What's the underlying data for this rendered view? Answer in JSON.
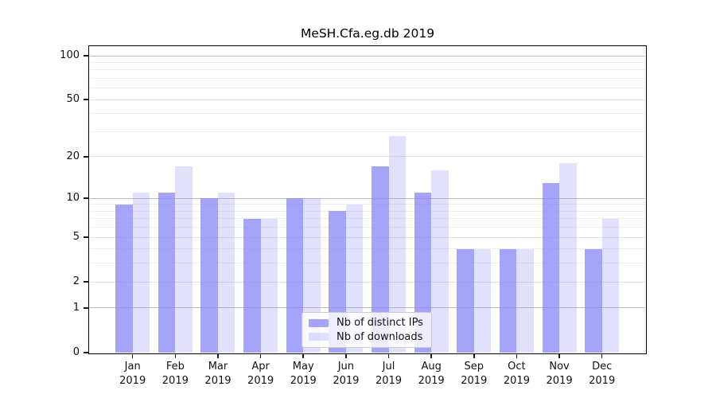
{
  "title": "MeSH.Cfa.eg.db 2019",
  "chart_data": {
    "type": "bar",
    "title": "MeSH.Cfa.eg.db 2019",
    "categories": [
      "Jan",
      "Feb",
      "Mar",
      "Apr",
      "May",
      "Jun",
      "Jul",
      "Aug",
      "Sep",
      "Oct",
      "Nov",
      "Dec"
    ],
    "category_year": "2019",
    "series": [
      {
        "name": "Nb of distinct IPs",
        "color": "#8b8bf6",
        "alpha": 0.78,
        "values": [
          9,
          11,
          10,
          7,
          10,
          8,
          17,
          11,
          4,
          4,
          13,
          4
        ]
      },
      {
        "name": "Nb of downloads",
        "color": "#8b8bf6",
        "alpha": 0.26,
        "values": [
          11,
          17,
          11,
          7,
          10,
          9,
          28,
          16,
          4,
          4,
          18,
          7
        ]
      }
    ],
    "xlabel": "",
    "ylabel": "",
    "yscale": "log1p",
    "ylim": [
      0,
      115
    ],
    "yticks": [
      0,
      1,
      2,
      5,
      10,
      20,
      50,
      100
    ],
    "yticks_minor": [
      3,
      4,
      6,
      7,
      8,
      9,
      30,
      40,
      60,
      70,
      80,
      90
    ],
    "grid": "horizontal",
    "legend_position": "lower-center-inside"
  },
  "colors": {
    "grid_major_power": "#bdbdbd",
    "grid_major": "#e3e3e3",
    "grid_minor": "#eeeeee",
    "spine": "#000000",
    "background": "#ffffff"
  }
}
